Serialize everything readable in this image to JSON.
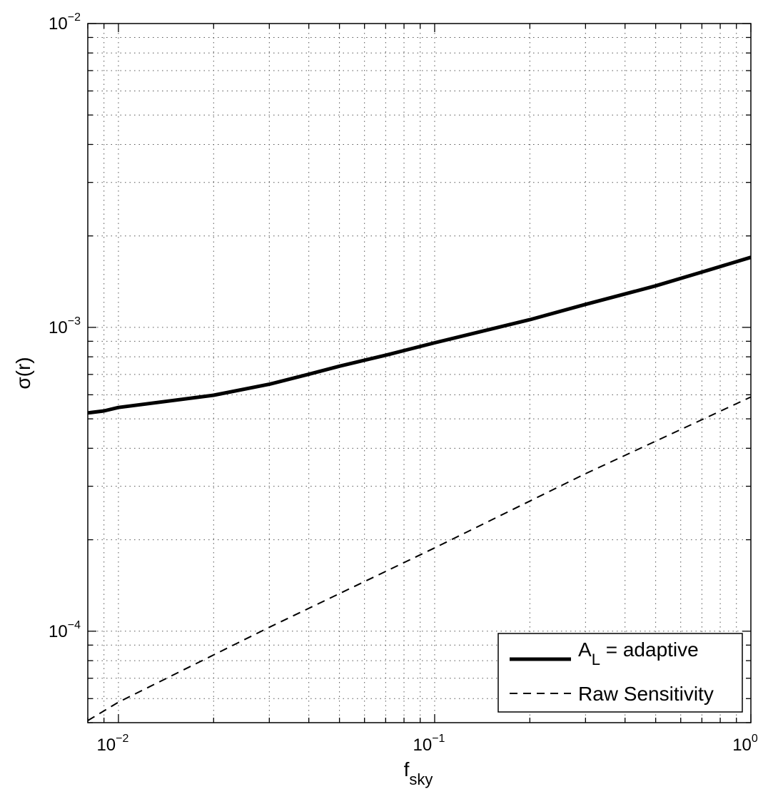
{
  "chart_data": {
    "type": "line",
    "xscale": "log",
    "yscale": "log",
    "xlim": [
      0.008,
      1
    ],
    "ylim": [
      5e-05,
      0.01
    ],
    "grid": true,
    "xlabel": {
      "base": "f",
      "subscript": "sky"
    },
    "ylabel": "σ(r)",
    "x_ticks": [
      {
        "value": 0.01,
        "base": "10",
        "exp": "−2"
      },
      {
        "value": 0.1,
        "base": "10",
        "exp": "−1"
      },
      {
        "value": 1,
        "base": "10",
        "exp": "0"
      }
    ],
    "y_ticks": [
      {
        "value": 0.0001,
        "base": "10",
        "exp": "−4"
      },
      {
        "value": 0.001,
        "base": "10",
        "exp": "−3"
      },
      {
        "value": 0.01,
        "base": "10",
        "exp": "−2"
      }
    ],
    "legend_position": "bottom-right",
    "series": [
      {
        "name": "A",
        "name_subscript": "L",
        "name_suffix": " = adaptive",
        "style": "solid-thick",
        "color": "#000000",
        "x": [
          0.008,
          0.009,
          0.01,
          0.02,
          0.03,
          0.04,
          0.05,
          0.07,
          0.1,
          0.2,
          0.3,
          0.5,
          0.7,
          1.0
        ],
        "y": [
          0.000523,
          0.000531,
          0.000545,
          0.000598,
          0.00065,
          0.000701,
          0.000745,
          0.00081,
          0.00089,
          0.00106,
          0.00119,
          0.00137,
          0.00152,
          0.0017
        ]
      },
      {
        "name": "Raw Sensitivity",
        "style": "dashed",
        "color": "#000000",
        "x": [
          0.008,
          0.01,
          0.03,
          0.1,
          0.3,
          1.0
        ],
        "y": [
          5.08e-05,
          5.84e-05,
          0.000103,
          0.000188,
          0.00033,
          0.00059
        ]
      }
    ]
  }
}
